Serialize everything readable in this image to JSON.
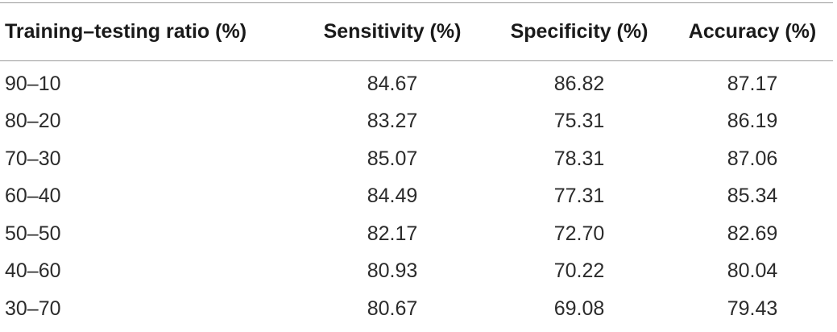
{
  "table": {
    "headers": [
      "Training–testing ratio (%)",
      "Sensitivity (%)",
      "Specificity (%)",
      "Accuracy (%)"
    ],
    "rows": [
      [
        "90–10",
        "84.67",
        "86.82",
        "87.17"
      ],
      [
        "80–20",
        "83.27",
        "75.31",
        "86.19"
      ],
      [
        "70–30",
        "85.07",
        "78.31",
        "87.06"
      ],
      [
        "60–40",
        "84.49",
        "77.31",
        "85.34"
      ],
      [
        "50–50",
        "82.17",
        "72.70",
        "82.69"
      ],
      [
        "40–60",
        "80.93",
        "70.22",
        "80.04"
      ],
      [
        "30–70",
        "80.67",
        "69.08",
        "79.43"
      ]
    ]
  }
}
